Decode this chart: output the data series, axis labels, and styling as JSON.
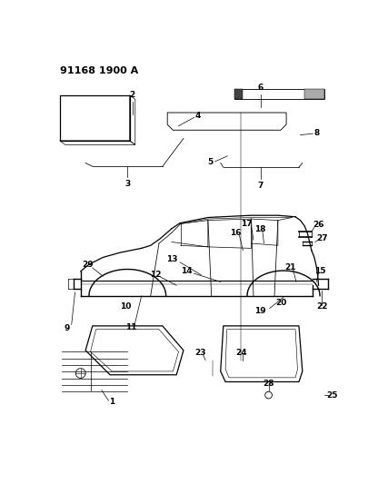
{
  "title": "91168 1900 A",
  "bg_color": "#ffffff",
  "line_color": "#000000",
  "title_fontsize": 8,
  "label_fontsize": 6.5,
  "fig_w": 4.06,
  "fig_h": 5.33
}
